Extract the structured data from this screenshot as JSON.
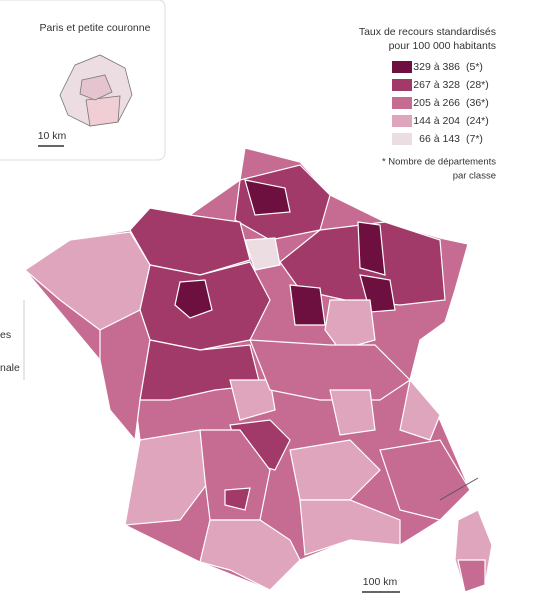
{
  "inset": {
    "title": "Paris et petite couronne",
    "scale": "10 km"
  },
  "legend": {
    "title_lines": [
      "Taux de recours standardisés",
      "pour 100 000 habitants"
    ],
    "classes": [
      {
        "range": "329 à 386",
        "count": "(5*)",
        "color": "#6d0f3f"
      },
      {
        "range": "267 à 328",
        "count": "(28*)",
        "color": "#a23a69"
      },
      {
        "range": "205 à 266",
        "count": "(36*)",
        "color": "#c66b92"
      },
      {
        "range": "144 à 204",
        "count": "(24*)",
        "color": "#dfa5bc"
      },
      {
        "range": "66 à 143",
        "count": "(7*)",
        "color": "#ecdde3"
      }
    ],
    "note_lines": [
      "* Nombre de départements",
      "par classe"
    ]
  },
  "map": {
    "scale": "100 km"
  },
  "left_fragments": [
    "es",
    "nale"
  ]
}
